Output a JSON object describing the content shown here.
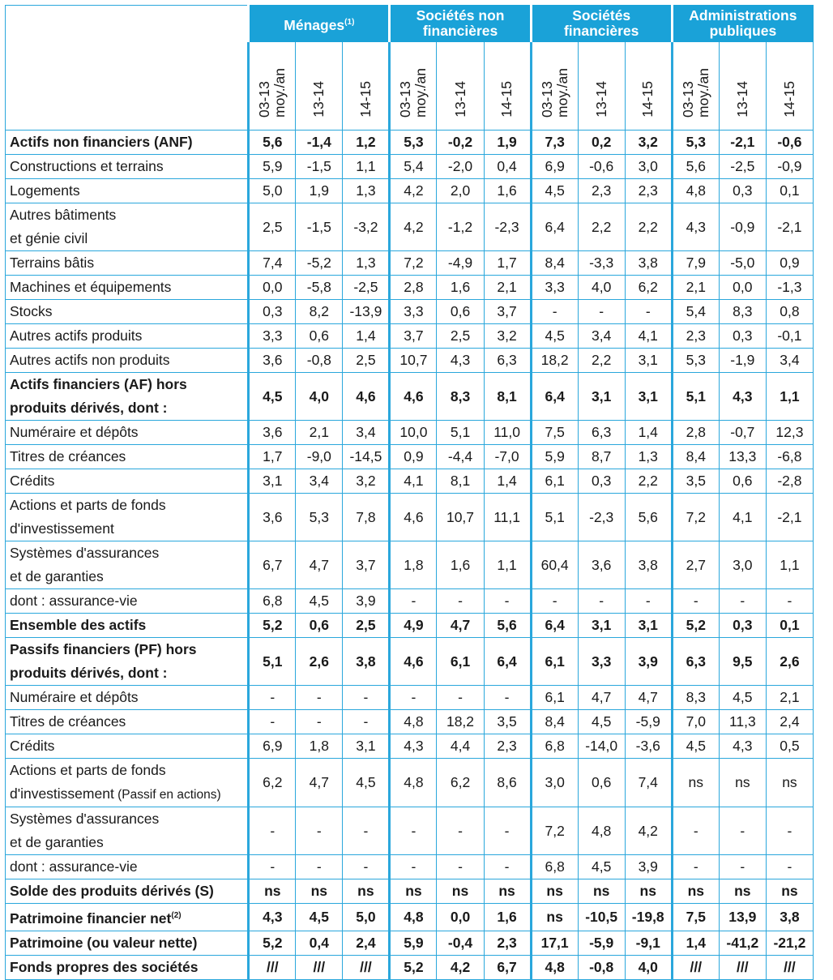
{
  "groups": [
    {
      "label": "Ménages",
      "sup": "(1)"
    },
    {
      "label": "Sociétés non financières",
      "sup": ""
    },
    {
      "label": "Sociétés financières",
      "sup": ""
    },
    {
      "label": "Administrations publiques",
      "sup": ""
    }
  ],
  "subcolumns": [
    "03-13\nmoy./an",
    "13-14",
    "14-15"
  ],
  "rows": [
    {
      "label": "Actifs non financiers (ANF)",
      "bold": true,
      "values": [
        "5,6",
        "-1,4",
        "1,2",
        "5,3",
        "-0,2",
        "1,9",
        "7,3",
        "0,2",
        "3,2",
        "5,3",
        "-2,1",
        "-0,6"
      ]
    },
    {
      "label": "Constructions et terrains",
      "bold": false,
      "values": [
        "5,9",
        "-1,5",
        "1,1",
        "5,4",
        "-2,0",
        "0,4",
        "6,9",
        "-0,6",
        "3,0",
        "5,6",
        "-2,5",
        "-0,9"
      ]
    },
    {
      "label": "Logements",
      "bold": false,
      "values": [
        "5,0",
        "1,9",
        "1,3",
        "4,2",
        "2,0",
        "1,6",
        "4,5",
        "2,3",
        "2,3",
        "4,8",
        "0,3",
        "0,1"
      ]
    },
    {
      "label": "Autres bâtiments\net génie civil",
      "bold": false,
      "values": [
        "2,5",
        "-1,5",
        "-3,2",
        "4,2",
        "-1,2",
        "-2,3",
        "6,4",
        "2,2",
        "2,2",
        "4,3",
        "-0,9",
        "-2,1"
      ]
    },
    {
      "label": "Terrains bâtis",
      "bold": false,
      "values": [
        "7,4",
        "-5,2",
        "1,3",
        "7,2",
        "-4,9",
        "1,7",
        "8,4",
        "-3,3",
        "3,8",
        "7,9",
        "-5,0",
        "0,9"
      ]
    },
    {
      "label": "Machines et équipements",
      "bold": false,
      "values": [
        "0,0",
        "-5,8",
        "-2,5",
        "2,8",
        "1,6",
        "2,1",
        "3,3",
        "4,0",
        "6,2",
        "2,1",
        "0,0",
        "-1,3"
      ]
    },
    {
      "label": "Stocks",
      "bold": false,
      "values": [
        "0,3",
        "8,2",
        "-13,9",
        "3,3",
        "0,6",
        "3,7",
        "-",
        "-",
        "-",
        "5,4",
        "8,3",
        "0,8"
      ]
    },
    {
      "label": "Autres actifs produits",
      "bold": false,
      "values": [
        "3,3",
        "0,6",
        "1,4",
        "3,7",
        "2,5",
        "3,2",
        "4,5",
        "3,4",
        "4,1",
        "2,3",
        "0,3",
        "-0,1"
      ]
    },
    {
      "label": "Autres actifs non produits",
      "bold": false,
      "values": [
        "3,6",
        "-0,8",
        "2,5",
        "10,7",
        "4,3",
        "6,3",
        "18,2",
        "2,2",
        "3,1",
        "5,3",
        "-1,9",
        "3,4"
      ]
    },
    {
      "label": "Actifs financiers (AF) hors\nproduits dérivés, dont :",
      "bold": true,
      "values": [
        "4,5",
        "4,0",
        "4,6",
        "4,6",
        "8,3",
        "8,1",
        "6,4",
        "3,1",
        "3,1",
        "5,1",
        "4,3",
        "1,1"
      ]
    },
    {
      "label": "Numéraire et dépôts",
      "bold": false,
      "values": [
        "3,6",
        "2,1",
        "3,4",
        "10,0",
        "5,1",
        "11,0",
        "7,5",
        "6,3",
        "1,4",
        "2,8",
        "-0,7",
        "12,3"
      ]
    },
    {
      "label": "Titres de créances",
      "bold": false,
      "values": [
        "1,7",
        "-9,0",
        "-14,5",
        "0,9",
        "-4,4",
        "-7,0",
        "5,9",
        "8,7",
        "1,3",
        "8,4",
        "13,3",
        "-6,8"
      ]
    },
    {
      "label": "Crédits",
      "bold": false,
      "values": [
        "3,1",
        "3,4",
        "3,2",
        "4,1",
        "8,1",
        "1,4",
        "6,1",
        "0,3",
        "2,2",
        "3,5",
        "0,6",
        "-2,8"
      ]
    },
    {
      "label": "Actions et parts de fonds\nd'investissement",
      "bold": false,
      "values": [
        "3,6",
        "5,3",
        "7,8",
        "4,6",
        "10,7",
        "11,1",
        "5,1",
        "-2,3",
        "5,6",
        "7,2",
        "4,1",
        "-2,1"
      ]
    },
    {
      "label": "Systèmes d'assurances\net de garanties",
      "bold": false,
      "values": [
        "6,7",
        "4,7",
        "3,7",
        "1,8",
        "1,6",
        "1,1",
        "60,4",
        "3,6",
        "3,8",
        "2,7",
        "3,0",
        "1,1"
      ]
    },
    {
      "label": "dont : assurance-vie",
      "bold": false,
      "values": [
        "6,8",
        "4,5",
        "3,9",
        "-",
        "-",
        "-",
        "-",
        "-",
        "-",
        "-",
        "-",
        "-"
      ]
    },
    {
      "label": "Ensemble des actifs",
      "bold": true,
      "values": [
        "5,2",
        "0,6",
        "2,5",
        "4,9",
        "4,7",
        "5,6",
        "6,4",
        "3,1",
        "3,1",
        "5,2",
        "0,3",
        "0,1"
      ]
    },
    {
      "label": "Passifs financiers (PF) hors\nproduits dérivés, dont :",
      "bold": true,
      "values": [
        "5,1",
        "2,6",
        "3,8",
        "4,6",
        "6,1",
        "6,4",
        "6,1",
        "3,3",
        "3,9",
        "6,3",
        "9,5",
        "2,6"
      ]
    },
    {
      "label": "Numéraire et dépôts",
      "bold": false,
      "values": [
        "-",
        "-",
        "-",
        "-",
        "-",
        "-",
        "6,1",
        "4,7",
        "4,7",
        "8,3",
        "4,5",
        "2,1"
      ]
    },
    {
      "label": "Titres de créances",
      "bold": false,
      "values": [
        "-",
        "-",
        "-",
        "4,8",
        "18,2",
        "3,5",
        "8,4",
        "4,5",
        "-5,9",
        "7,0",
        "11,3",
        "2,4"
      ]
    },
    {
      "label": "Crédits",
      "bold": false,
      "values": [
        "6,9",
        "1,8",
        "3,1",
        "4,3",
        "4,4",
        "2,3",
        "6,8",
        "-14,0",
        "-3,6",
        "4,5",
        "4,3",
        "0,5"
      ]
    },
    {
      "label": "Actions et parts de fonds\nd'investissement",
      "label_suffix": " (Passif en actions)",
      "bold": false,
      "values": [
        "6,2",
        "4,7",
        "4,5",
        "4,8",
        "6,2",
        "8,6",
        "3,0",
        "0,6",
        "7,4",
        "ns",
        "ns",
        "ns"
      ]
    },
    {
      "label": "Systèmes d'assurances\net de garanties",
      "bold": false,
      "values": [
        "-",
        "-",
        "-",
        "-",
        "-",
        "-",
        "7,2",
        "4,8",
        "4,2",
        "-",
        "-",
        "-"
      ]
    },
    {
      "label": "dont : assurance-vie",
      "bold": false,
      "values": [
        "-",
        "-",
        "-",
        "-",
        "-",
        "-",
        "6,8",
        "4,5",
        "3,9",
        "-",
        "-",
        "-"
      ]
    },
    {
      "label": "Solde des produits dérivés (S)",
      "bold": true,
      "values": [
        "ns",
        "ns",
        "ns",
        "ns",
        "ns",
        "ns",
        "ns",
        "ns",
        "ns",
        "ns",
        "ns",
        "ns"
      ]
    },
    {
      "label": "Patrimoine financier net",
      "label_sup": "(2)",
      "bold": true,
      "values": [
        "4,3",
        "4,5",
        "5,0",
        "4,8",
        "0,0",
        "1,6",
        "ns",
        "-10,5",
        "-19,8",
        "7,5",
        "13,9",
        "3,8"
      ]
    },
    {
      "label": "Patrimoine (ou valeur nette)",
      "bold": true,
      "values": [
        "5,2",
        "0,4",
        "2,4",
        "5,9",
        "-0,4",
        "2,3",
        "17,1",
        "-5,9",
        "-9,1",
        "1,4",
        "-41,2",
        "-21,2"
      ]
    },
    {
      "label": "Fonds propres des sociétés",
      "bold": true,
      "values": [
        "///",
        "///",
        "///",
        "5,2",
        "4,2",
        "6,7",
        "4,8",
        "-0,8",
        "4,0",
        "///",
        "///",
        "///"
      ]
    }
  ],
  "colors": {
    "accent": "#1aa2d8",
    "border": "#2aa7dc"
  }
}
